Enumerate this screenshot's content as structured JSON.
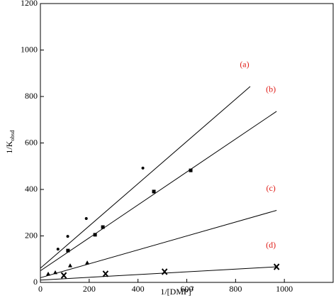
{
  "chart_data": {
    "type": "scatter",
    "xlabel": "1/[DMP]",
    "xlabel_sup": "2",
    "ylabel": "1/K",
    "ylabel_sub": "obsd",
    "xlim": [
      0,
      1200
    ],
    "ylim": [
      0,
      1200
    ],
    "xticks": [
      0,
      200,
      400,
      600,
      800,
      1000
    ],
    "yticks": [
      0,
      200,
      400,
      600,
      800,
      1000,
      1200
    ],
    "label_color": "#e0201b",
    "series": [
      {
        "name": "(a)",
        "color": "#000000",
        "marker": "circle",
        "x": [
          72,
          112,
          188,
          420
        ],
        "values": [
          143,
          198,
          275,
          492
        ],
        "fit_x": [
          0,
          860
        ],
        "fit_values": [
          61,
          843
        ]
      },
      {
        "name": "(b)",
        "color": "#000000",
        "marker": "square",
        "x": [
          113,
          224,
          256,
          465,
          616
        ],
        "values": [
          137,
          205,
          238,
          391,
          482
        ],
        "fit_x": [
          0,
          968
        ],
        "fit_values": [
          50,
          736
        ]
      },
      {
        "name": "(c)",
        "color": "#000000",
        "marker": "triangle",
        "x": [
          32,
          61,
          122,
          192
        ],
        "values": [
          37,
          43,
          73,
          85
        ],
        "fit_x": [
          0,
          968
        ],
        "fit_values": [
          20,
          310
        ]
      },
      {
        "name": "(d)",
        "color": "#000000",
        "marker": "x",
        "x": [
          96,
          267,
          509,
          968
        ],
        "values": [
          30,
          37,
          46,
          67
        ],
        "fit_x": [
          0,
          968
        ],
        "fit_values": [
          10,
          67
        ]
      }
    ]
  }
}
